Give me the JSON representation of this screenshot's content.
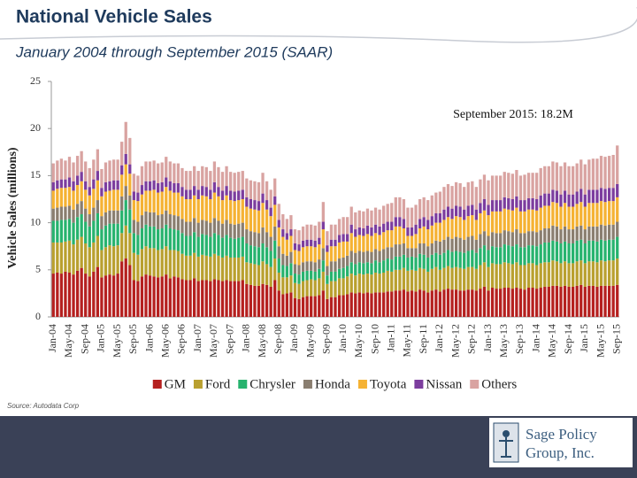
{
  "chart_data": {
    "type": "stacked_bar",
    "title": "National Vehicle Sales",
    "subtitle": "January 2004 through September 2015 (SAAR)",
    "y_label": "Vehicle Sales (millions)",
    "annotation": "September 2015: 18.2M",
    "ylim": [
      0,
      25
    ],
    "yticks": [
      0,
      5,
      10,
      15,
      20,
      25
    ],
    "grid": false,
    "legend": "bottom",
    "categories": [
      "Jan-04",
      null,
      null,
      null,
      "May-04",
      null,
      null,
      null,
      "Sep-04",
      null,
      null,
      null,
      "Jan-05",
      null,
      null,
      null,
      "May-05",
      null,
      null,
      null,
      "Sep-05",
      null,
      null,
      null,
      "Jan-06",
      null,
      null,
      null,
      "May-06",
      null,
      null,
      null,
      "Sep-06",
      null,
      null,
      null,
      "Jan-07",
      null,
      null,
      null,
      "May-07",
      null,
      null,
      null,
      "Sep-07",
      null,
      null,
      null,
      "Jan-08",
      null,
      null,
      null,
      "May-08",
      null,
      null,
      null,
      "Sep-08",
      null,
      null,
      null,
      "Jan-09",
      null,
      null,
      null,
      "May-09",
      null,
      null,
      null,
      "Sep-09",
      null,
      null,
      null,
      "Jan-10",
      null,
      null,
      null,
      "May-10",
      null,
      null,
      null,
      "Sep-10",
      null,
      null,
      null,
      "Jan-11",
      null,
      null,
      null,
      "May-11",
      null,
      null,
      null,
      "Sep-11",
      null,
      null,
      null,
      "Jan-12",
      null,
      null,
      null,
      "May-12",
      null,
      null,
      null,
      "Sep-12",
      null,
      null,
      null,
      "Jan-13",
      null,
      null,
      null,
      "May-13",
      null,
      null,
      null,
      "Sep-13",
      null,
      null,
      null,
      "Jan-14",
      null,
      null,
      null,
      "May-14",
      null,
      null,
      null,
      "Sep-14",
      null,
      null,
      null,
      "Jan-15",
      null,
      null,
      null,
      "May-15",
      null,
      null,
      null,
      "Sep-15"
    ],
    "series": [
      {
        "name": "GM",
        "color": "#b5201f",
        "values": [
          4.6,
          4.7,
          4.6,
          4.8,
          4.7,
          4.5,
          4.9,
          5.2,
          4.6,
          4.3,
          4.8,
          5.3,
          4.2,
          4.4,
          4.5,
          4.4,
          4.6,
          5.9,
          6.2,
          5.5,
          3.9,
          3.8,
          4.3,
          4.5,
          4.4,
          4.3,
          4.2,
          4.3,
          4.5,
          4.1,
          4.3,
          4.2,
          4.0,
          3.9,
          3.9,
          4.1,
          3.8,
          3.9,
          3.9,
          3.8,
          4.0,
          3.9,
          3.8,
          3.9,
          3.8,
          3.8,
          3.8,
          3.9,
          3.5,
          3.4,
          3.3,
          3.3,
          3.5,
          3.4,
          3.2,
          3.9,
          2.8,
          2.4,
          2.5,
          2.6,
          2.0,
          1.9,
          2.1,
          2.2,
          2.2,
          2.2,
          2.3,
          2.8,
          1.9,
          2.1,
          2.1,
          2.3,
          2.3,
          2.4,
          2.6,
          2.5,
          2.6,
          2.5,
          2.6,
          2.5,
          2.6,
          2.6,
          2.6,
          2.7,
          2.7,
          2.8,
          2.8,
          2.9,
          2.7,
          2.8,
          2.7,
          2.9,
          2.8,
          2.6,
          2.8,
          2.9,
          2.7,
          2.9,
          3.0,
          2.9,
          2.9,
          2.8,
          2.8,
          2.9,
          2.9,
          2.8,
          3.0,
          3.2,
          2.8,
          3.1,
          3.0,
          3.0,
          3.1,
          3.1,
          3.0,
          3.1,
          3.0,
          2.9,
          3.1,
          3.1,
          3.0,
          3.1,
          3.2,
          3.2,
          3.3,
          3.3,
          3.2,
          3.3,
          3.2,
          3.2,
          3.3,
          3.4,
          3.2,
          3.3,
          3.3,
          3.2,
          3.3,
          3.3,
          3.3,
          3.3,
          3.4
        ]
      },
      {
        "name": "Ford",
        "color": "#b9a02f",
        "values": [
          3.3,
          3.2,
          3.3,
          3.2,
          3.4,
          3.2,
          3.3,
          3.3,
          3.2,
          3.1,
          3.1,
          3.3,
          2.9,
          3.0,
          3.1,
          3.1,
          3.0,
          3.0,
          3.5,
          3.4,
          2.9,
          2.8,
          2.9,
          3.0,
          2.9,
          3.0,
          2.9,
          2.9,
          3.0,
          3.0,
          2.8,
          2.8,
          2.7,
          2.6,
          2.6,
          2.7,
          2.6,
          2.7,
          2.6,
          2.6,
          2.7,
          2.6,
          2.5,
          2.6,
          2.5,
          2.5,
          2.5,
          2.5,
          2.3,
          2.3,
          2.3,
          2.2,
          2.4,
          2.2,
          2.1,
          2.3,
          1.9,
          1.8,
          1.7,
          1.8,
          1.6,
          1.6,
          1.7,
          1.7,
          1.8,
          1.7,
          1.8,
          2.0,
          1.6,
          1.7,
          1.7,
          1.8,
          1.8,
          1.9,
          2.0,
          1.9,
          2.0,
          2.0,
          2.0,
          2.0,
          2.1,
          2.0,
          2.1,
          2.2,
          2.1,
          2.2,
          2.2,
          2.3,
          2.2,
          2.2,
          2.2,
          2.3,
          2.3,
          2.2,
          2.3,
          2.4,
          2.3,
          2.3,
          2.4,
          2.3,
          2.4,
          2.4,
          2.3,
          2.4,
          2.4,
          2.3,
          2.5,
          2.6,
          2.5,
          2.6,
          2.6,
          2.6,
          2.7,
          2.6,
          2.6,
          2.7,
          2.5,
          2.6,
          2.6,
          2.6,
          2.5,
          2.6,
          2.6,
          2.6,
          2.7,
          2.6,
          2.5,
          2.6,
          2.5,
          2.5,
          2.6,
          2.6,
          2.5,
          2.6,
          2.6,
          2.6,
          2.7,
          2.6,
          2.7,
          2.7,
          2.8
        ]
      },
      {
        "name": "Chrysler",
        "color": "#27b36e",
        "values": [
          2.3,
          2.3,
          2.4,
          2.3,
          2.3,
          2.3,
          2.4,
          2.4,
          2.3,
          2.2,
          2.3,
          2.4,
          2.2,
          2.3,
          2.3,
          2.4,
          2.3,
          2.4,
          2.7,
          2.5,
          2.1,
          2.1,
          2.2,
          2.3,
          2.3,
          2.3,
          2.2,
          2.2,
          2.3,
          2.3,
          2.2,
          2.2,
          2.2,
          2.1,
          2.1,
          2.2,
          2.1,
          2.2,
          2.2,
          2.1,
          2.2,
          2.2,
          2.1,
          2.2,
          2.1,
          2.0,
          2.1,
          2.1,
          2.0,
          1.9,
          1.9,
          1.9,
          1.9,
          1.8,
          1.7,
          1.9,
          1.5,
          1.3,
          1.2,
          1.3,
          1.0,
          1.0,
          1.0,
          1.0,
          0.9,
          0.9,
          1.0,
          1.2,
          0.9,
          1.0,
          1.0,
          1.0,
          1.1,
          1.1,
          1.2,
          1.2,
          1.2,
          1.2,
          1.2,
          1.2,
          1.3,
          1.2,
          1.3,
          1.3,
          1.3,
          1.4,
          1.4,
          1.4,
          1.4,
          1.4,
          1.4,
          1.5,
          1.5,
          1.5,
          1.5,
          1.5,
          1.6,
          1.6,
          1.7,
          1.7,
          1.7,
          1.7,
          1.7,
          1.7,
          1.8,
          1.7,
          1.8,
          1.8,
          1.8,
          1.8,
          1.8,
          1.8,
          1.9,
          1.9,
          1.9,
          1.9,
          1.9,
          1.9,
          1.9,
          1.9,
          2.0,
          2.0,
          2.1,
          2.1,
          2.1,
          2.1,
          2.1,
          2.1,
          2.1,
          2.1,
          2.2,
          2.2,
          2.1,
          2.2,
          2.2,
          2.2,
          2.2,
          2.2,
          2.2,
          2.2,
          2.3
        ]
      },
      {
        "name": "Honda",
        "color": "#8a7e70",
        "values": [
          1.3,
          1.4,
          1.4,
          1.4,
          1.4,
          1.4,
          1.4,
          1.4,
          1.4,
          1.3,
          1.4,
          1.4,
          1.4,
          1.4,
          1.4,
          1.4,
          1.4,
          1.5,
          1.5,
          1.5,
          1.4,
          1.4,
          1.4,
          1.4,
          1.5,
          1.5,
          1.5,
          1.5,
          1.5,
          1.5,
          1.5,
          1.5,
          1.5,
          1.5,
          1.5,
          1.5,
          1.5,
          1.5,
          1.5,
          1.5,
          1.6,
          1.5,
          1.5,
          1.6,
          1.5,
          1.5,
          1.5,
          1.5,
          1.5,
          1.5,
          1.5,
          1.5,
          1.7,
          1.6,
          1.5,
          1.5,
          1.3,
          1.2,
          1.1,
          1.2,
          1.0,
          1.0,
          1.0,
          1.0,
          1.0,
          1.0,
          1.0,
          1.3,
          1.0,
          1.1,
          1.1,
          1.1,
          1.1,
          1.1,
          1.2,
          1.2,
          1.2,
          1.2,
          1.2,
          1.2,
          1.2,
          1.2,
          1.2,
          1.2,
          1.3,
          1.3,
          1.3,
          1.2,
          1.0,
          0.9,
          1.0,
          1.1,
          1.2,
          1.2,
          1.2,
          1.3,
          1.4,
          1.4,
          1.4,
          1.4,
          1.5,
          1.5,
          1.4,
          1.5,
          1.5,
          1.4,
          1.5,
          1.5,
          1.5,
          1.5,
          1.5,
          1.5,
          1.5,
          1.5,
          1.5,
          1.6,
          1.5,
          1.5,
          1.5,
          1.5,
          1.5,
          1.5,
          1.5,
          1.5,
          1.6,
          1.6,
          1.5,
          1.6,
          1.5,
          1.5,
          1.5,
          1.5,
          1.5,
          1.5,
          1.5,
          1.6,
          1.6,
          1.6,
          1.6,
          1.6,
          1.6
        ]
      },
      {
        "name": "Toyota",
        "color": "#f5b233",
        "values": [
          1.9,
          2.0,
          2.0,
          2.0,
          2.0,
          2.0,
          2.0,
          2.1,
          2.0,
          2.0,
          2.0,
          2.1,
          2.1,
          2.2,
          2.1,
          2.2,
          2.2,
          2.3,
          2.3,
          2.3,
          2.1,
          2.2,
          2.2,
          2.2,
          2.3,
          2.4,
          2.4,
          2.4,
          2.5,
          2.5,
          2.4,
          2.5,
          2.4,
          2.4,
          2.4,
          2.4,
          2.5,
          2.6,
          2.6,
          2.5,
          2.7,
          2.6,
          2.5,
          2.6,
          2.5,
          2.5,
          2.5,
          2.5,
          2.4,
          2.4,
          2.4,
          2.4,
          2.6,
          2.4,
          2.2,
          2.3,
          2.0,
          1.8,
          1.7,
          1.7,
          1.5,
          1.5,
          1.6,
          1.6,
          1.6,
          1.6,
          1.6,
          2.0,
          1.5,
          1.6,
          1.6,
          1.7,
          1.7,
          1.5,
          1.9,
          1.7,
          1.7,
          1.7,
          1.8,
          1.7,
          1.7,
          1.7,
          1.8,
          1.8,
          1.8,
          1.9,
          1.9,
          1.6,
          1.3,
          1.3,
          1.5,
          1.6,
          1.8,
          1.8,
          1.9,
          1.9,
          2.0,
          2.1,
          2.1,
          2.1,
          2.2,
          2.2,
          2.1,
          2.2,
          2.2,
          2.1,
          2.2,
          2.2,
          2.2,
          2.2,
          2.3,
          2.3,
          2.3,
          2.3,
          2.3,
          2.3,
          2.3,
          2.3,
          2.3,
          2.3,
          2.3,
          2.4,
          2.4,
          2.4,
          2.5,
          2.5,
          2.4,
          2.5,
          2.4,
          2.4,
          2.4,
          2.5,
          2.4,
          2.5,
          2.5,
          2.5,
          2.5,
          2.5,
          2.5,
          2.5,
          2.6
        ]
      },
      {
        "name": "Nissan",
        "color": "#7c3d9e",
        "values": [
          0.9,
          0.9,
          0.9,
          0.9,
          1.0,
          1.0,
          1.0,
          1.0,
          0.9,
          0.9,
          1.0,
          1.0,
          0.9,
          1.0,
          1.0,
          1.0,
          1.0,
          1.0,
          1.1,
          1.0,
          0.9,
          0.9,
          1.0,
          1.0,
          1.0,
          1.0,
          1.0,
          1.0,
          1.0,
          1.0,
          1.0,
          1.0,
          1.0,
          1.0,
          1.0,
          1.0,
          1.0,
          1.0,
          1.0,
          1.0,
          1.1,
          1.0,
          1.0,
          1.0,
          1.0,
          1.0,
          1.0,
          1.0,
          1.0,
          1.0,
          1.0,
          1.0,
          1.0,
          1.0,
          0.9,
          0.9,
          0.8,
          0.8,
          0.7,
          0.7,
          0.7,
          0.7,
          0.7,
          0.7,
          0.7,
          0.7,
          0.7,
          0.8,
          0.7,
          0.7,
          0.7,
          0.8,
          0.8,
          0.8,
          0.9,
          0.8,
          0.8,
          0.8,
          0.9,
          0.9,
          0.9,
          0.9,
          0.9,
          0.9,
          0.9,
          1.0,
          1.0,
          1.0,
          0.9,
          0.9,
          1.0,
          1.0,
          1.0,
          1.0,
          1.0,
          1.0,
          1.0,
          1.1,
          1.1,
          1.1,
          1.1,
          1.1,
          1.1,
          1.1,
          1.1,
          1.1,
          1.1,
          1.2,
          1.1,
          1.2,
          1.2,
          1.2,
          1.2,
          1.2,
          1.2,
          1.2,
          1.2,
          1.2,
          1.2,
          1.2,
          1.2,
          1.3,
          1.3,
          1.3,
          1.3,
          1.3,
          1.3,
          1.3,
          1.3,
          1.3,
          1.3,
          1.4,
          1.3,
          1.4,
          1.4,
          1.4,
          1.4,
          1.4,
          1.4,
          1.4,
          1.4
        ]
      },
      {
        "name": "Others",
        "color": "#d9a3a1",
        "values": [
          2.0,
          2.1,
          2.2,
          2.0,
          2.2,
          2.0,
          2.1,
          2.2,
          2.1,
          2.0,
          2.1,
          2.3,
          2.0,
          2.1,
          2.2,
          2.2,
          2.2,
          2.5,
          3.4,
          2.8,
          1.9,
          1.8,
          2.0,
          2.1,
          2.1,
          2.1,
          2.1,
          2.1,
          2.2,
          2.1,
          2.1,
          2.1,
          2.0,
          2.0,
          2.0,
          2.1,
          2.0,
          2.1,
          2.1,
          2.0,
          2.2,
          2.1,
          2.0,
          2.1,
          2.0,
          2.0,
          2.0,
          2.0,
          2.0,
          2.0,
          2.0,
          2.0,
          2.2,
          2.0,
          1.9,
          1.9,
          1.7,
          1.6,
          1.5,
          1.5,
          1.5,
          1.5,
          1.5,
          1.6,
          1.6,
          1.6,
          1.7,
          2.1,
          1.5,
          1.6,
          1.6,
          1.7,
          1.8,
          1.8,
          1.9,
          1.8,
          1.8,
          1.8,
          1.8,
          1.8,
          1.8,
          1.8,
          1.9,
          1.9,
          2.0,
          2.1,
          2.1,
          2.1,
          2.1,
          2.1,
          2.1,
          2.1,
          2.1,
          2.1,
          2.2,
          2.2,
          2.3,
          2.4,
          2.4,
          2.4,
          2.5,
          2.5,
          2.4,
          2.5,
          2.5,
          2.4,
          2.5,
          2.6,
          2.6,
          2.6,
          2.6,
          2.6,
          2.7,
          2.7,
          2.7,
          2.8,
          2.6,
          2.7,
          2.7,
          2.7,
          2.8,
          2.9,
          2.9,
          2.9,
          3.0,
          3.0,
          3.0,
          3.0,
          3.0,
          3.0,
          3.0,
          3.1,
          3.2,
          3.2,
          3.3,
          3.3,
          3.4,
          3.4,
          3.4,
          3.5,
          4.1
        ]
      }
    ]
  },
  "footer": {
    "source": "Source: Autodata Corp",
    "logo_lines": [
      "Sage Policy",
      "Group, Inc."
    ]
  }
}
